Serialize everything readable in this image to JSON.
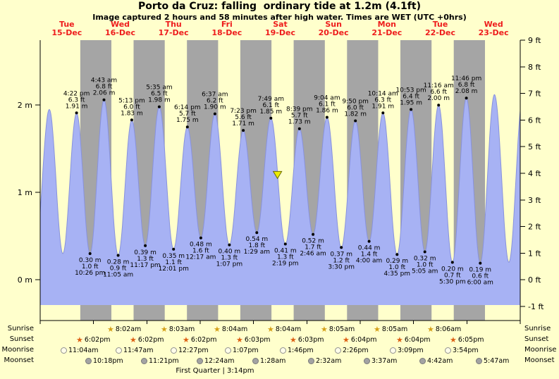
{
  "header": {
    "title": "Porto da Cruz: falling  ordinary tide at 1.2m (4.1ft)",
    "subtitle": "Image captured 2 hours and 58 minutes after high water. Times are WET (UTC +0hrs)"
  },
  "chart_data": {
    "type": "area",
    "hours_span": 216,
    "days": [
      {
        "name": "Tue",
        "date": "15-Dec"
      },
      {
        "name": "Wed",
        "date": "16-Dec"
      },
      {
        "name": "Thu",
        "date": "17-Dec"
      },
      {
        "name": "Fri",
        "date": "18-Dec"
      },
      {
        "name": "Sat",
        "date": "19-Dec"
      },
      {
        "name": "Sun",
        "date": "20-Dec"
      },
      {
        "name": "Mon",
        "date": "21-Dec"
      },
      {
        "name": "Tue",
        "date": "22-Dec"
      },
      {
        "name": "Wed",
        "date": "23-Dec"
      }
    ],
    "y_left": [
      {
        "label": "2 m",
        "m": 2
      },
      {
        "label": "1 m",
        "m": 1
      },
      {
        "label": "0 m",
        "m": 0
      }
    ],
    "y_right": [
      {
        "label": "9 ft",
        "ft": 9
      },
      {
        "label": "8 ft",
        "ft": 8
      },
      {
        "label": "7 ft",
        "ft": 7
      },
      {
        "label": "6 ft",
        "ft": 6
      },
      {
        "label": "5 ft",
        "ft": 5
      },
      {
        "label": "4 ft",
        "ft": 4
      },
      {
        "label": "3 ft",
        "ft": 3
      },
      {
        "label": "2 ft",
        "ft": 2
      },
      {
        "label": "1 ft",
        "ft": 1
      },
      {
        "label": "0 ft",
        "ft": 0
      },
      {
        "label": "-1 ft",
        "ft": -1
      }
    ],
    "tide_events": [
      {
        "type": "high",
        "day": 0,
        "time": "4:22 pm",
        "ft": 6.3,
        "m": 1.91
      },
      {
        "type": "low",
        "day": 0,
        "time": "10:26 pm",
        "ft": 1.0,
        "m": 0.3
      },
      {
        "type": "high",
        "day": 1,
        "time": "4:43 am",
        "ft": 6.8,
        "m": 2.06
      },
      {
        "type": "low",
        "day": 1,
        "time": "11:05 am",
        "ft": 0.9,
        "m": 0.28
      },
      {
        "type": "high",
        "day": 1,
        "time": "5:13 pm",
        "ft": 6.0,
        "m": 1.83
      },
      {
        "type": "low",
        "day": 1,
        "time": "11:17 pm",
        "ft": 1.3,
        "m": 0.39
      },
      {
        "type": "high",
        "day": 2,
        "time": "5:35 am",
        "ft": 6.5,
        "m": 1.98
      },
      {
        "type": "low",
        "day": 2,
        "time": "12:01 pm",
        "ft": 1.1,
        "m": 0.35
      },
      {
        "type": "high",
        "day": 2,
        "time": "6:14 pm",
        "ft": 5.7,
        "m": 1.75
      },
      {
        "type": "low",
        "day": 3,
        "time": "12:17 am",
        "ft": 1.6,
        "m": 0.48
      },
      {
        "type": "high",
        "day": 3,
        "time": "6:37 am",
        "ft": 6.2,
        "m": 1.9
      },
      {
        "type": "low",
        "day": 3,
        "time": "1:07 pm",
        "ft": 1.3,
        "m": 0.4
      },
      {
        "type": "high",
        "day": 3,
        "time": "7:23 pm",
        "ft": 5.6,
        "m": 1.71
      },
      {
        "type": "low",
        "day": 4,
        "time": "1:29 am",
        "ft": 1.8,
        "m": 0.54
      },
      {
        "type": "high",
        "day": 4,
        "time": "7:49 am",
        "ft": 6.1,
        "m": 1.85
      },
      {
        "type": "low",
        "day": 4,
        "time": "2:19 pm",
        "ft": 1.3,
        "m": 0.41
      },
      {
        "type": "high",
        "day": 4,
        "time": "8:39 pm",
        "ft": 5.7,
        "m": 1.73
      },
      {
        "type": "low",
        "day": 5,
        "time": "2:46 am",
        "ft": 1.7,
        "m": 0.52
      },
      {
        "type": "high",
        "day": 5,
        "time": "9:04 am",
        "ft": 6.1,
        "m": 1.86
      },
      {
        "type": "low",
        "day": 5,
        "time": "3:30 pm",
        "ft": 1.2,
        "m": 0.37
      },
      {
        "type": "high",
        "day": 5,
        "time": "9:50 pm",
        "ft": 6.0,
        "m": 1.82
      },
      {
        "type": "low",
        "day": 6,
        "time": "4:00 am",
        "ft": 1.4,
        "m": 0.44
      },
      {
        "type": "high",
        "day": 6,
        "time": "10:14 am",
        "ft": 6.3,
        "m": 1.91
      },
      {
        "type": "low",
        "day": 6,
        "time": "4:35 pm",
        "ft": 1.0,
        "m": 0.29
      },
      {
        "type": "high",
        "day": 6,
        "time": "10:53 pm",
        "ft": 6.4,
        "m": 1.95
      },
      {
        "type": "low",
        "day": 7,
        "time": "5:05 am",
        "ft": 1.0,
        "m": 0.32
      },
      {
        "type": "high",
        "day": 7,
        "time": "11:16 am",
        "ft": 6.6,
        "m": 2.0
      },
      {
        "type": "low",
        "day": 7,
        "time": "5:30 pm",
        "ft": 0.7,
        "m": 0.2
      },
      {
        "type": "high",
        "day": 7,
        "time": "11:46 pm",
        "ft": 6.8,
        "m": 2.08
      },
      {
        "type": "low",
        "day": 8,
        "time": "6:00 am",
        "ft": 0.6,
        "m": 0.19
      }
    ],
    "edge_extremes": [
      {
        "t": -2.2,
        "m": 0.33
      },
      {
        "t": 4.1,
        "m": 1.95
      },
      {
        "t": 10.2,
        "m": 0.3
      },
      {
        "t": 204.4,
        "m": 2.12
      },
      {
        "t": 210.9,
        "m": 0.2
      },
      {
        "t": 217.2,
        "m": 2.1
      }
    ],
    "current_marker": {
      "day": 4,
      "hour": 10.78,
      "height_m": 1.2
    },
    "colors": {
      "background": "#ffffcc",
      "night_band": "#a5a5a5",
      "tide_fill": "#a7b2f4",
      "tide_edge": "#8892dd",
      "day_label": "#ee1c1c",
      "axis": "#000000",
      "marker_fill": "#eded00",
      "marker_edge": "#6b6b00"
    }
  },
  "astro": {
    "rows": [
      {
        "key": "sunrise",
        "label": "Sunrise",
        "icon": "star",
        "icon_color": "#d4a017",
        "events": [
          {
            "day": 1,
            "time": "8:02am"
          },
          {
            "day": 2,
            "time": "8:03am"
          },
          {
            "day": 3,
            "time": "8:04am"
          },
          {
            "day": 4,
            "time": "8:04am"
          },
          {
            "day": 5,
            "time": "8:05am"
          },
          {
            "day": 6,
            "time": "8:05am"
          },
          {
            "day": 7,
            "time": "8:06am"
          }
        ]
      },
      {
        "key": "sunset",
        "label": "Sunset",
        "icon": "star",
        "icon_color": "#dd6014",
        "events": [
          {
            "day": 0,
            "time": "6:02pm"
          },
          {
            "day": 1,
            "time": "6:02pm"
          },
          {
            "day": 2,
            "time": "6:02pm"
          },
          {
            "day": 3,
            "time": "6:03pm"
          },
          {
            "day": 4,
            "time": "6:03pm"
          },
          {
            "day": 5,
            "time": "6:04pm"
          },
          {
            "day": 6,
            "time": "6:04pm"
          },
          {
            "day": 7,
            "time": "6:05pm"
          }
        ]
      },
      {
        "key": "moonrise",
        "label": "Moonrise",
        "icon": "circle",
        "circle_fill": "#fffdea",
        "circle_border": "#8f8f8f",
        "events": [
          {
            "day": 0,
            "time": "11:04am"
          },
          {
            "day": 1,
            "time": "11:47am"
          },
          {
            "day": 2,
            "time": "12:27pm"
          },
          {
            "day": 3,
            "time": "1:07pm"
          },
          {
            "day": 4,
            "time": "1:46pm"
          },
          {
            "day": 5,
            "time": "2:26pm"
          },
          {
            "day": 6,
            "time": "3:09pm"
          },
          {
            "day": 7,
            "time": "3:54pm"
          }
        ]
      },
      {
        "key": "moonset",
        "label": "Moonset",
        "icon": "circle",
        "circle_fill": "#a3a3a3",
        "circle_border": "#7a7a7a",
        "events": [
          {
            "day": 0,
            "time": "10:18pm"
          },
          {
            "day": 1,
            "time": "11:21pm"
          },
          {
            "day": 3,
            "time": "12:24am"
          },
          {
            "day": 4,
            "time": "1:28am"
          },
          {
            "day": 5,
            "time": "2:32am"
          },
          {
            "day": 6,
            "time": "3:37am"
          },
          {
            "day": 7,
            "time": "4:42am"
          },
          {
            "day": 8,
            "time": "5:47am"
          }
        ]
      }
    ],
    "moon_phase": "First Quarter | 3:14pm"
  }
}
